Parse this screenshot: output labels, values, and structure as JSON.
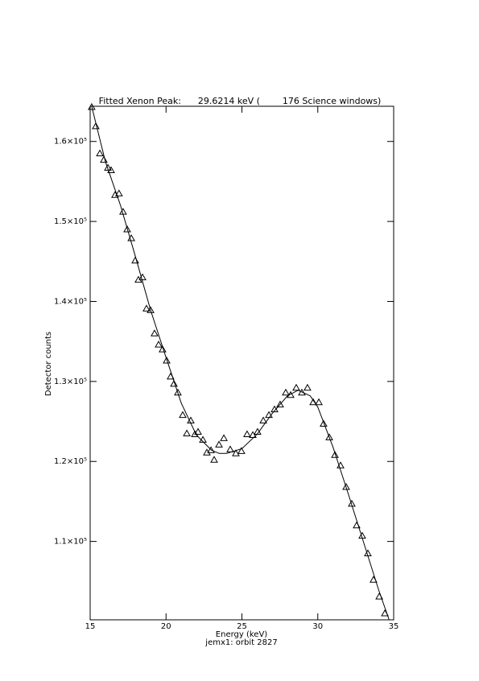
{
  "chart_data": {
    "type": "scatter",
    "title": "Fitted Xenon Peak:      29.6214 keV (        176 Science windows)",
    "x_label": "Energy (keV)",
    "x_sublabel": "jemx1: orbit 2827",
    "y_label": "Detector counts",
    "xlim": [
      15,
      35
    ],
    "xticks": [
      15,
      20,
      25,
      30,
      35
    ],
    "ylim": [
      100200,
      164400
    ],
    "yticks": [
      {
        "value": 110000,
        "label": "1.1×10⁵"
      },
      {
        "value": 120000,
        "label": "1.2×10⁵"
      },
      {
        "value": 130000,
        "label": "1.3×10⁵"
      },
      {
        "value": 140000,
        "label": "1.4×10⁵"
      },
      {
        "value": 150000,
        "label": "1.5×10⁵"
      },
      {
        "value": 160000,
        "label": "1.6×10⁵"
      }
    ],
    "color": "#000000",
    "points": {
      "x": [
        15.1,
        15.37,
        15.64,
        15.9,
        16.17,
        16.38,
        16.64,
        16.9,
        17.17,
        17.44,
        17.71,
        17.97,
        18.18,
        18.45,
        18.71,
        18.98,
        19.24,
        19.51,
        19.77,
        20.04,
        20.3,
        20.52,
        20.78,
        21.1,
        21.37,
        21.63,
        21.9,
        22.11,
        22.43,
        22.69,
        22.96,
        23.17,
        23.49,
        23.81,
        24.23,
        24.6,
        24.97,
        25.34,
        25.72,
        26.03,
        26.41,
        26.78,
        27.15,
        27.52,
        27.89,
        28.21,
        28.58,
        28.95,
        29.32,
        29.7,
        30.07,
        30.38,
        30.76,
        31.13,
        31.5,
        31.87,
        32.24,
        32.56,
        32.93,
        33.3,
        33.67,
        34.05,
        34.42
      ],
      "y": [
        164300,
        161900,
        158500,
        157700,
        156700,
        156400,
        153300,
        153500,
        151200,
        149000,
        147900,
        145100,
        142700,
        143000,
        139100,
        138900,
        136000,
        134600,
        134000,
        132600,
        130600,
        129700,
        128600,
        125800,
        123500,
        125100,
        123400,
        123700,
        122700,
        121100,
        121400,
        120200,
        122100,
        122900,
        121500,
        121000,
        121300,
        123400,
        123300,
        123700,
        125100,
        125800,
        126500,
        127100,
        128600,
        128300,
        129200,
        128600,
        129200,
        127400,
        127400,
        124700,
        123000,
        120800,
        119500,
        116800,
        114700,
        112000,
        110700,
        108500,
        105200,
        103100,
        101000
      ]
    },
    "fit": {
      "x": [
        15.1,
        16,
        17,
        18,
        19,
        20,
        21,
        22,
        23,
        23.5,
        24,
        25,
        26,
        27,
        28,
        28.7,
        29.5,
        30,
        31,
        32,
        33,
        34,
        34.7
      ],
      "y": [
        164400,
        157500,
        152000,
        145500,
        138800,
        133000,
        127300,
        123300,
        121400,
        121000,
        121000,
        121600,
        123400,
        126000,
        128200,
        128900,
        128200,
        126800,
        121800,
        116000,
        110000,
        104000,
        100200
      ]
    }
  }
}
